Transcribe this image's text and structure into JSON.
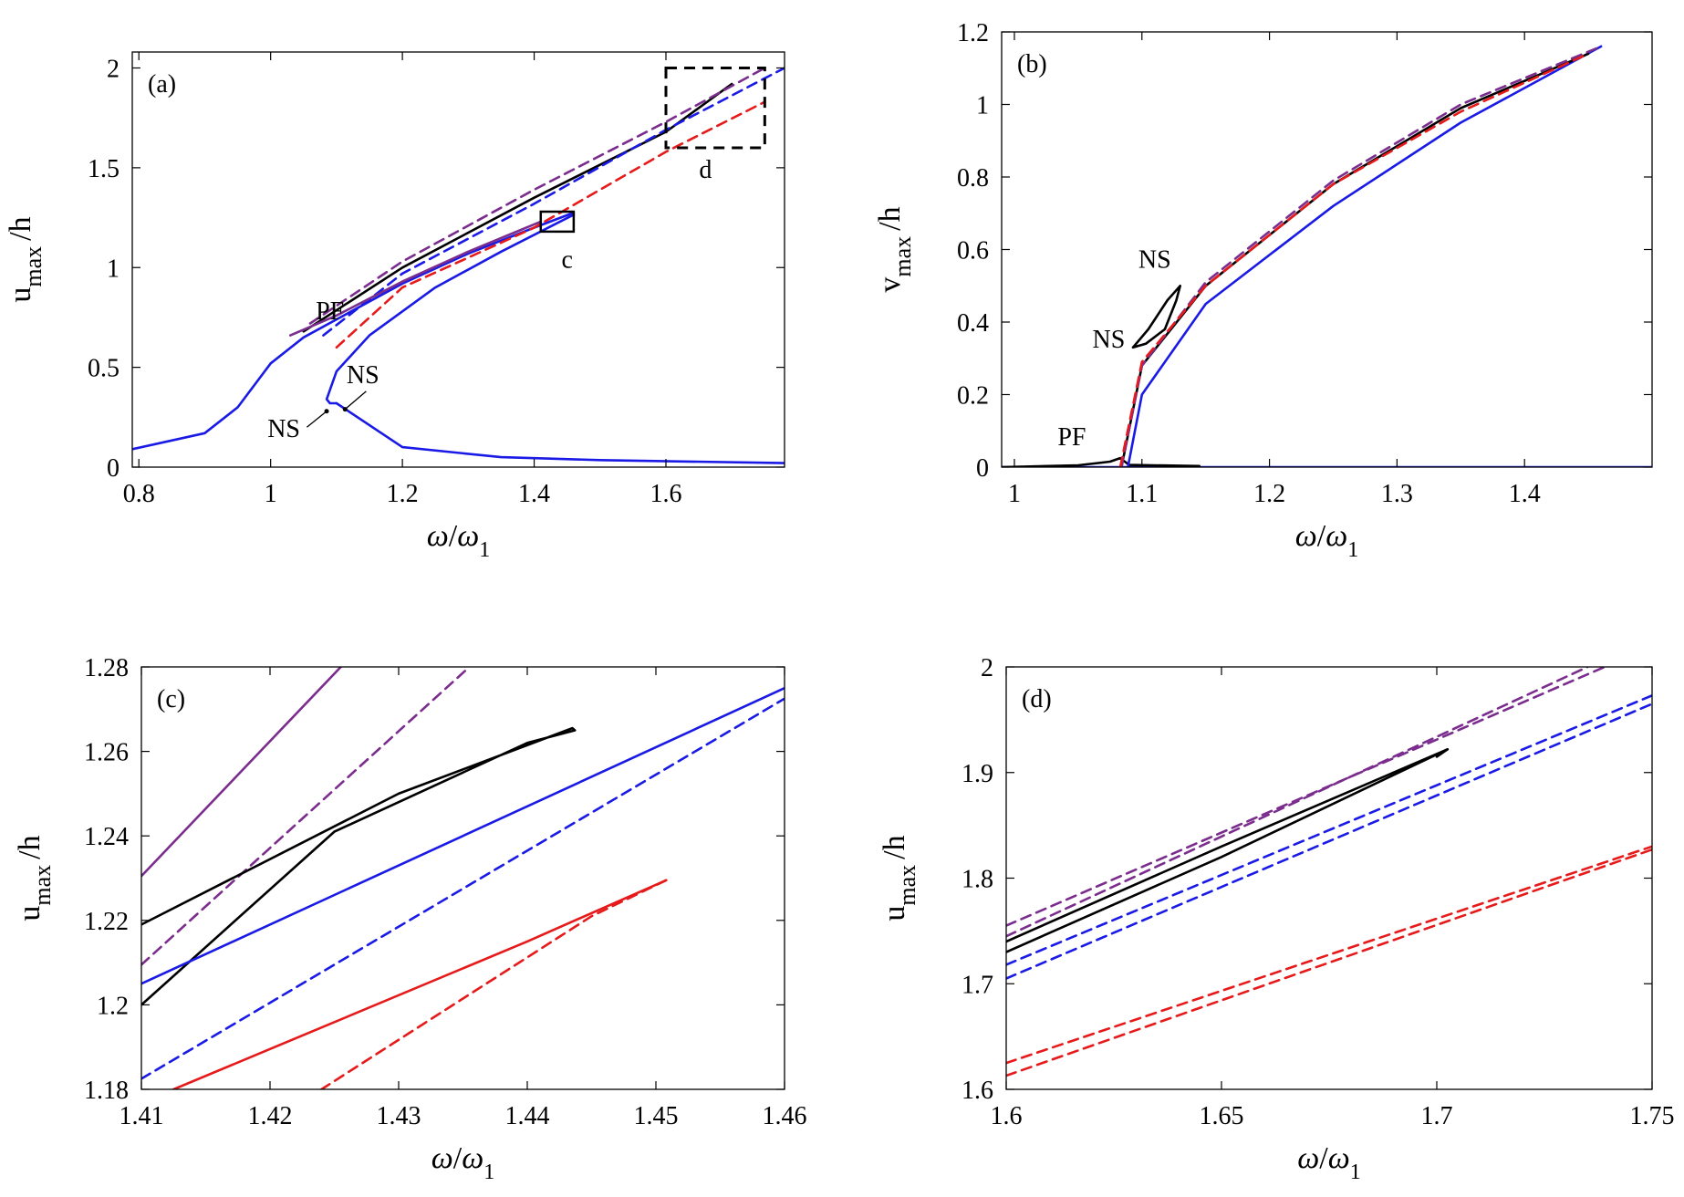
{
  "colors": {
    "black": "#000000",
    "purple": "#7b2d8e",
    "blue": "#1a1ae6",
    "red": "#e61a1a"
  },
  "chart_data": [
    {
      "panel": "(a)",
      "type": "line",
      "xlabel": "ω/ω1",
      "ylabel": "umax/h",
      "xlim": [
        0.79,
        1.78
      ],
      "ylim": [
        0,
        2.08
      ],
      "xticks": [
        "0.8",
        "1",
        "1.2",
        "1.4",
        "1.6"
      ],
      "yticks": [
        "0",
        "0.5",
        "1",
        "1.5",
        "2"
      ],
      "annotations": [
        {
          "text": "PF",
          "x": 1.09,
          "y": 0.74
        },
        {
          "text": "NS",
          "x": 1.14,
          "y": 0.42
        },
        {
          "text": "NS",
          "x": 1.02,
          "y": 0.15
        },
        {
          "text": "c",
          "x": 1.45,
          "y": 1.0
        },
        {
          "text": "d",
          "x": 1.66,
          "y": 1.45
        }
      ],
      "zoom_boxes": [
        {
          "label": "c",
          "x": [
            1.41,
            1.46
          ],
          "y": [
            1.18,
            1.28
          ]
        },
        {
          "label": "d",
          "x": [
            1.6,
            1.75
          ],
          "y": [
            1.6,
            2.0
          ]
        }
      ],
      "series": [
        {
          "color": "blue",
          "style": "solid",
          "x": [
            0.79,
            0.9,
            0.95,
            1.0,
            1.05,
            1.1,
            1.2,
            1.3,
            1.4,
            1.46
          ],
          "y": [
            0.09,
            0.17,
            0.3,
            0.52,
            0.65,
            0.74,
            0.92,
            1.07,
            1.2,
            1.275
          ]
        },
        {
          "color": "blue",
          "style": "solid",
          "x": [
            1.1,
            1.2,
            1.35,
            1.5,
            1.78
          ],
          "y": [
            0.32,
            0.1,
            0.05,
            0.035,
            0.02
          ]
        },
        {
          "color": "blue",
          "style": "solid",
          "x": [
            1.46,
            1.35,
            1.25,
            1.15,
            1.1,
            1.085,
            1.09,
            1.1
          ],
          "y": [
            1.265,
            1.08,
            0.9,
            0.66,
            0.48,
            0.34,
            0.32,
            0.32
          ]
        },
        {
          "color": "black",
          "style": "solid",
          "x": [
            1.05,
            1.2,
            1.4,
            1.6,
            1.7
          ],
          "y": [
            0.68,
            1.0,
            1.35,
            1.68,
            1.92
          ]
        },
        {
          "color": "purple",
          "style": "dashed",
          "x": [
            1.06,
            1.2,
            1.4,
            1.6,
            1.75
          ],
          "y": [
            0.72,
            1.03,
            1.39,
            1.73,
            2.0
          ]
        },
        {
          "color": "red",
          "style": "dashed",
          "x": [
            1.1,
            1.2,
            1.4,
            1.6,
            1.75
          ],
          "y": [
            0.6,
            0.9,
            1.2,
            1.58,
            1.83
          ]
        },
        {
          "color": "blue",
          "style": "dashed",
          "x": [
            1.08,
            1.2,
            1.4,
            1.6,
            1.78
          ],
          "y": [
            0.66,
            0.97,
            1.32,
            1.69,
            2.0
          ]
        },
        {
          "color": "purple",
          "style": "solid",
          "x": [
            1.03,
            1.1,
            1.2,
            1.3,
            1.41
          ],
          "y": [
            0.66,
            0.76,
            0.93,
            1.08,
            1.23
          ]
        }
      ]
    },
    {
      "panel": "(b)",
      "type": "line",
      "xlabel": "ω/ω1",
      "ylabel": "vmax/h",
      "xlim": [
        0.99,
        1.5
      ],
      "ylim": [
        0,
        1.2
      ],
      "xticks": [
        "1",
        "1.1",
        "1.2",
        "1.3",
        "1.4"
      ],
      "yticks": [
        "0",
        "0.2",
        "0.4",
        "0.6",
        "0.8",
        "1",
        "1.2"
      ],
      "annotations": [
        {
          "text": "NS",
          "x": 1.11,
          "y": 0.55
        },
        {
          "text": "NS",
          "x": 1.074,
          "y": 0.33
        },
        {
          "text": "PF",
          "x": 1.045,
          "y": 0.06
        }
      ],
      "series": [
        {
          "color": "blue",
          "style": "solid",
          "x": [
            0.99,
            1.5
          ],
          "y": [
            0.0,
            0.0
          ]
        },
        {
          "color": "black",
          "style": "solid",
          "x": [
            0.99,
            1.05,
            1.075,
            1.083,
            1.09,
            1.145
          ],
          "y": [
            0.0,
            0.005,
            0.015,
            0.025,
            0.006,
            0.003
          ]
        },
        {
          "color": "blue",
          "style": "solid",
          "x": [
            1.089,
            1.1,
            1.15,
            1.25,
            1.35,
            1.46
          ],
          "y": [
            0.0,
            0.2,
            0.45,
            0.72,
            0.95,
            1.16
          ]
        },
        {
          "color": "black",
          "style": "solid",
          "x": [
            1.084,
            1.1,
            1.15,
            1.25,
            1.35,
            1.45
          ],
          "y": [
            0.0,
            0.28,
            0.5,
            0.78,
            0.99,
            1.14
          ]
        },
        {
          "color": "purple",
          "style": "dashed",
          "x": [
            1.084,
            1.1,
            1.15,
            1.25,
            1.35,
            1.46
          ],
          "y": [
            0.0,
            0.28,
            0.51,
            0.79,
            1.0,
            1.16
          ]
        },
        {
          "color": "red",
          "style": "dashed",
          "x": [
            1.083,
            1.1,
            1.15,
            1.25,
            1.35,
            1.45
          ],
          "y": [
            0.0,
            0.29,
            0.5,
            0.78,
            0.98,
            1.14
          ]
        },
        {
          "color": "black",
          "style": "solid",
          "x": [
            1.093,
            1.105,
            1.12,
            1.13,
            1.127,
            1.118,
            1.103,
            1.093
          ],
          "y": [
            0.33,
            0.38,
            0.46,
            0.5,
            0.46,
            0.38,
            0.34,
            0.33
          ]
        }
      ]
    },
    {
      "panel": "(c)",
      "type": "line",
      "xlabel": "ω/ω1",
      "ylabel": "umax/h",
      "xlim": [
        1.41,
        1.46
      ],
      "ylim": [
        1.18,
        1.28
      ],
      "xticks": [
        "1.41",
        "1.42",
        "1.43",
        "1.44",
        "1.45",
        "1.46"
      ],
      "yticks": [
        "1.18",
        "1.2",
        "1.22",
        "1.24",
        "1.26",
        "1.28"
      ],
      "series": [
        {
          "color": "purple",
          "style": "solid",
          "x": [
            1.41,
            1.4255
          ],
          "y": [
            1.2305,
            1.28
          ]
        },
        {
          "color": "purple",
          "style": "dashed",
          "x": [
            1.41,
            1.4355
          ],
          "y": [
            1.2095,
            1.28
          ]
        },
        {
          "color": "black",
          "style": "solid",
          "x": [
            1.41,
            1.43,
            1.4435,
            1.4437,
            1.44,
            1.425,
            1.41
          ],
          "y": [
            1.219,
            1.25,
            1.2655,
            1.265,
            1.262,
            1.241,
            1.2
          ]
        },
        {
          "color": "blue",
          "style": "solid",
          "x": [
            1.41,
            1.46
          ],
          "y": [
            1.205,
            1.275
          ]
        },
        {
          "color": "blue",
          "style": "dashed",
          "x": [
            1.41,
            1.46
          ],
          "y": [
            1.1825,
            1.2725
          ]
        },
        {
          "color": "red",
          "style": "solid",
          "x": [
            1.4125,
            1.44,
            1.4508
          ],
          "y": [
            1.18,
            1.215,
            1.2295
          ]
        },
        {
          "color": "red",
          "style": "dashed",
          "x": [
            1.4508,
            1.445,
            1.435,
            1.424
          ],
          "y": [
            1.2295,
            1.221,
            1.2015,
            1.18
          ]
        }
      ]
    },
    {
      "panel": "(d)",
      "type": "line",
      "xlabel": "ω/ω1",
      "ylabel": "umax/h",
      "xlim": [
        1.6,
        1.75
      ],
      "ylim": [
        1.6,
        2.0
      ],
      "xticks": [
        "1.6",
        "1.65",
        "1.7",
        "1.75"
      ],
      "yticks": [
        "1.6",
        "1.7",
        "1.8",
        "1.9",
        "2"
      ],
      "series": [
        {
          "color": "purple",
          "style": "dashed",
          "x": [
            1.6,
            1.739
          ],
          "y": [
            1.755,
            2.0
          ]
        },
        {
          "color": "purple",
          "style": "dashed",
          "x": [
            1.6,
            1.735
          ],
          "y": [
            1.745,
            2.0
          ]
        },
        {
          "color": "black",
          "style": "solid",
          "x": [
            1.6,
            1.65,
            1.7025,
            1.7
          ],
          "y": [
            1.74,
            1.83,
            1.922,
            1.915
          ]
        },
        {
          "color": "black",
          "style": "solid",
          "x": [
            1.6,
            1.65,
            1.7025
          ],
          "y": [
            1.73,
            1.82,
            1.922
          ]
        },
        {
          "color": "blue",
          "style": "dashed",
          "x": [
            1.6,
            1.75
          ],
          "y": [
            1.718,
            1.973
          ]
        },
        {
          "color": "blue",
          "style": "dashed",
          "x": [
            1.6,
            1.75
          ],
          "y": [
            1.705,
            1.965
          ]
        },
        {
          "color": "red",
          "style": "dashed",
          "x": [
            1.6,
            1.75
          ],
          "y": [
            1.625,
            1.83
          ]
        },
        {
          "color": "red",
          "style": "dashed",
          "x": [
            1.6,
            1.75
          ],
          "y": [
            1.613,
            1.827
          ]
        }
      ]
    }
  ]
}
